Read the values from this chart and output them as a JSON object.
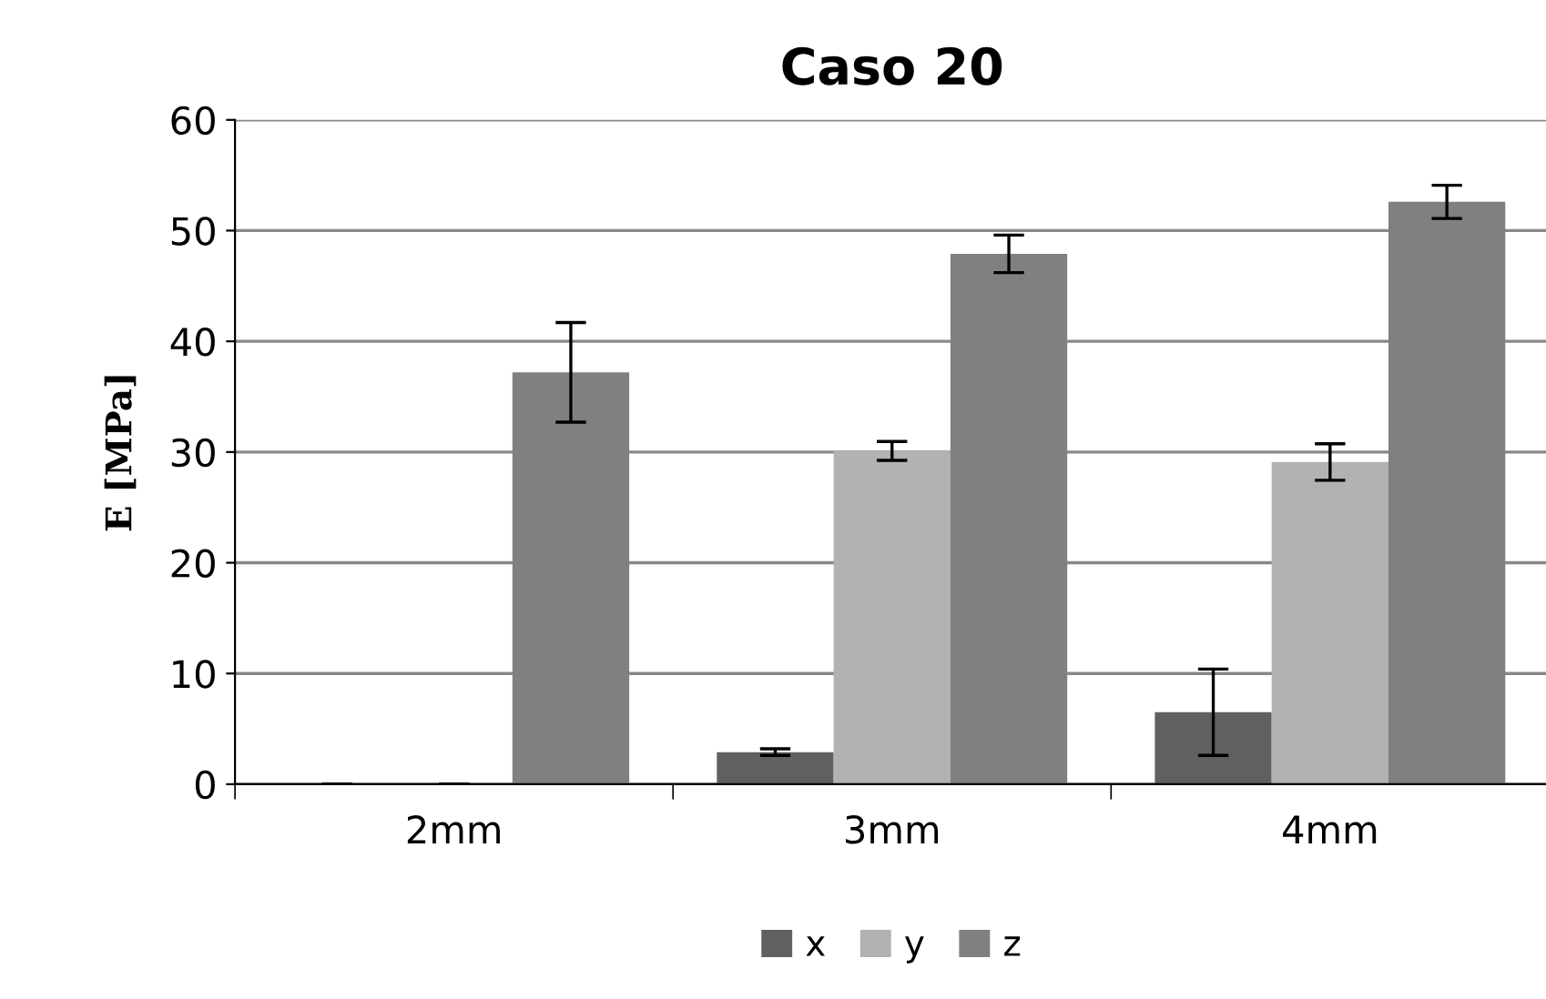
{
  "chart_data": {
    "type": "bar",
    "title": "Caso 20",
    "ylabel": "E [MPa]",
    "categories": [
      "2mm",
      "3mm",
      "4mm"
    ],
    "series": [
      {
        "name": "x",
        "color": "#606060",
        "values": [
          0,
          2.9,
          6.5
        ],
        "errors": [
          0,
          0.3,
          3.9
        ]
      },
      {
        "name": "y",
        "color": "#b2b2b2",
        "values": [
          0,
          30.1,
          29.1
        ],
        "errors": [
          0,
          0.85,
          1.65
        ]
      },
      {
        "name": "z",
        "color": "#808080",
        "values": [
          37.2,
          47.9,
          52.6
        ],
        "errors": [
          4.5,
          1.7,
          1.5
        ]
      }
    ],
    "ylim": [
      0,
      60
    ],
    "yticks": [
      0,
      10,
      20,
      30,
      40,
      50,
      60
    ],
    "grid": "y",
    "legend": "bottom"
  }
}
